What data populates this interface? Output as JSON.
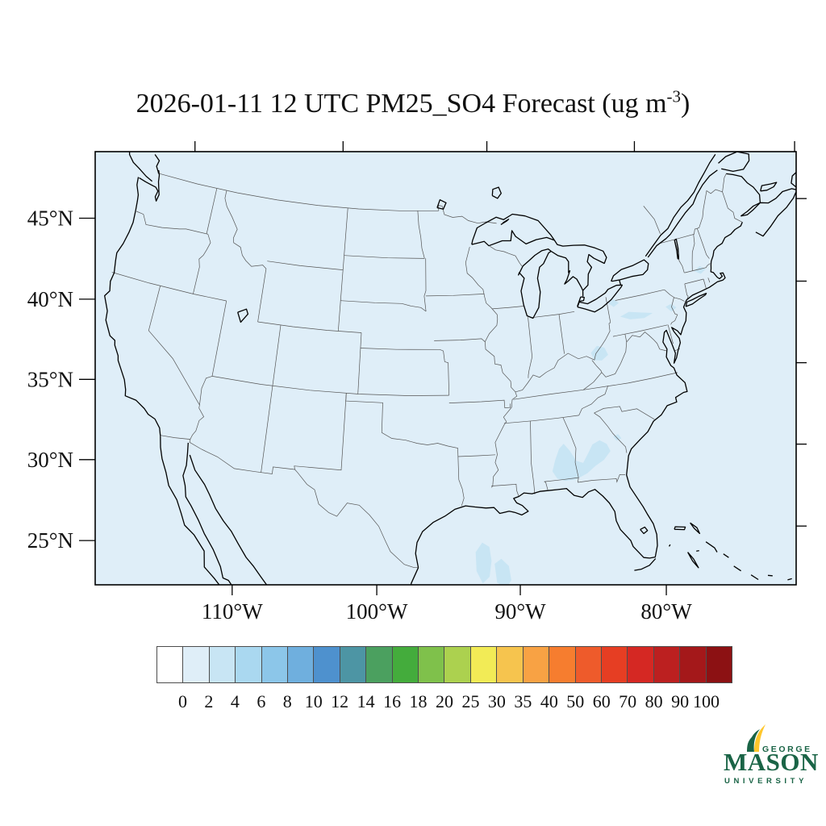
{
  "title": {
    "prefix": "2026-01-11 12 UTC PM25_SO4 Forecast (ug m",
    "superscript": "-3",
    "close": ")"
  },
  "map": {
    "background_color": "#DFEEF8",
    "patch_color": "#C8E5F4",
    "coast_color": "#000000",
    "border_color": "#555555",
    "frame_color": "#000000",
    "lat_ticks": [
      {
        "value": 45,
        "label": "45°N"
      },
      {
        "value": 40,
        "label": "40°N"
      },
      {
        "value": 35,
        "label": "35°N"
      },
      {
        "value": 30,
        "label": "30°N"
      },
      {
        "value": 25,
        "label": "25°N"
      }
    ],
    "lon_ticks": [
      {
        "value": -110,
        "label": "110°W"
      },
      {
        "value": -100,
        "label": "100°W"
      },
      {
        "value": -90,
        "label": "90°W"
      },
      {
        "value": -80,
        "label": "80°W"
      }
    ],
    "top_tick_meridians": [
      -120,
      -105,
      -90,
      -75,
      -60
    ],
    "right_tick_parallels": [
      25,
      30,
      35,
      40,
      45
    ]
  },
  "colorbar": {
    "outline_color": "#4d4d4d",
    "tick_labels": [
      "0",
      "2",
      "4",
      "6",
      "8",
      "10",
      "12",
      "14",
      "16",
      "18",
      "20",
      "25",
      "30",
      "35",
      "40",
      "50",
      "60",
      "70",
      "80",
      "90",
      "100"
    ],
    "colors": [
      "#FFFFFF",
      "#DFEEF8",
      "#C8E5F4",
      "#AAD8F0",
      "#8CC6E9",
      "#6FAFDE",
      "#4E91CE",
      "#4D95A4",
      "#4BA05F",
      "#44AC3C",
      "#7FC14B",
      "#ACD14F",
      "#F2EB56",
      "#F6C44E",
      "#F8A244",
      "#F67D2F",
      "#EE5B2B",
      "#E63E23",
      "#D52823",
      "#BC2020",
      "#A4181A",
      "#8C1113"
    ]
  },
  "logo": {
    "line1": "GEORGE",
    "line2": "MASON",
    "line3": "UNIVERSITY",
    "green": "#1A6446",
    "yellow": "#FFC72C"
  },
  "chart_data": {
    "type": "heatmap",
    "title": "2026-01-11 12 UTC PM25_SO4 Forecast (ug m-3)",
    "units": "ug m-3",
    "projection": "Lambert conformal over CONUS",
    "x_tick_labels": [
      "110°W",
      "100°W",
      "90°W",
      "80°W"
    ],
    "y_tick_labels": [
      "25°N",
      "30°N",
      "35°N",
      "40°N",
      "45°N"
    ],
    "levels": [
      0,
      2,
      4,
      6,
      8,
      10,
      12,
      14,
      16,
      18,
      20,
      25,
      30,
      35,
      40,
      50,
      60,
      70,
      80,
      90,
      100
    ],
    "palette": [
      "#FFFFFF",
      "#DFEEF8",
      "#C8E5F4",
      "#AAD8F0",
      "#8CC6E9",
      "#6FAFDE",
      "#4E91CE",
      "#4D95A4",
      "#4BA05F",
      "#44AC3C",
      "#7FC14B",
      "#ACD14F",
      "#F2EB56",
      "#F6C44E",
      "#F8A244",
      "#F67D2F",
      "#EE5B2B",
      "#E63E23",
      "#D52823",
      "#BC2020",
      "#A4181A",
      "#8C1113"
    ],
    "field_summary": "Concentrations are in the 0-2 ug/m3 bin nearly everywhere; small 2-4 ug/m3 patches over central Alabama-Georgia, the Georgia-South Carolina border, West Virginia, western and central Pennsylvania, the New Jersey/NYC area, central Massachusetts, and two blobs in the central Gulf of Mexico.",
    "legend_position": "bottom"
  }
}
